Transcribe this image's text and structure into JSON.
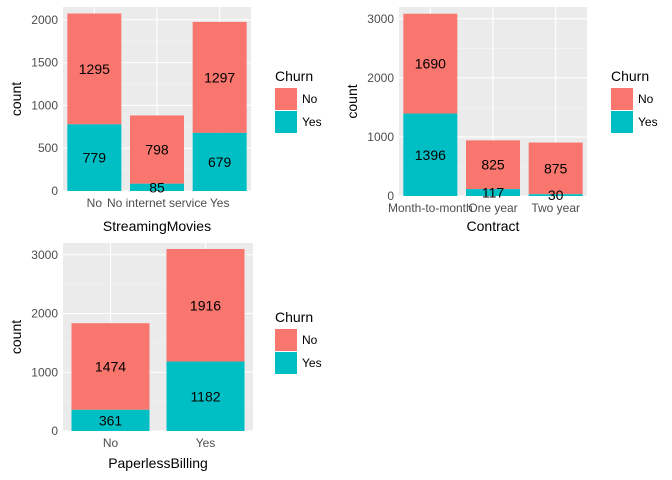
{
  "colors": {
    "panel": "#ebebeb",
    "grid_major": "#ffffff",
    "grid_minor": "#f5f5f5",
    "No": "#f8766d",
    "Yes": "#00bfc4"
  },
  "chart_data": [
    {
      "type": "bar",
      "stacked": true,
      "xlabel": "StreamingMovies",
      "ylabel": "count",
      "categories": [
        "No",
        "No internet service",
        "Yes"
      ],
      "series": [
        {
          "name": "No",
          "values": [
            1295,
            798,
            1297
          ]
        },
        {
          "name": "Yes",
          "values": [
            779,
            85,
            679
          ]
        }
      ],
      "ylim": [
        0,
        2150
      ],
      "yticks": [
        0,
        500,
        1000,
        1500,
        2000
      ],
      "legend": {
        "title": "Churn",
        "entries": [
          "No",
          "Yes"
        ],
        "position": "right"
      },
      "grid": true
    },
    {
      "type": "bar",
      "stacked": true,
      "xlabel": "Contract",
      "ylabel": "count",
      "categories": [
        "Month-to-month",
        "One year",
        "Two year"
      ],
      "series": [
        {
          "name": "No",
          "values": [
            1690,
            825,
            875
          ]
        },
        {
          "name": "Yes",
          "values": [
            1396,
            117,
            30
          ]
        }
      ],
      "ylim": [
        0,
        3200
      ],
      "yticks": [
        0,
        1000,
        2000,
        3000
      ],
      "legend": {
        "title": "Churn",
        "entries": [
          "No",
          "Yes"
        ],
        "position": "right"
      },
      "grid": true
    },
    {
      "type": "bar",
      "stacked": true,
      "xlabel": "PaperlessBilling",
      "ylabel": "count",
      "categories": [
        "No",
        "Yes"
      ],
      "series": [
        {
          "name": "No",
          "values": [
            1474,
            1916
          ]
        },
        {
          "name": "Yes",
          "values": [
            361,
            1182
          ]
        }
      ],
      "ylim": [
        0,
        3200
      ],
      "yticks": [
        0,
        1000,
        2000,
        3000
      ],
      "legend": {
        "title": "Churn",
        "entries": [
          "No",
          "Yes"
        ],
        "position": "right"
      },
      "grid": true
    }
  ]
}
